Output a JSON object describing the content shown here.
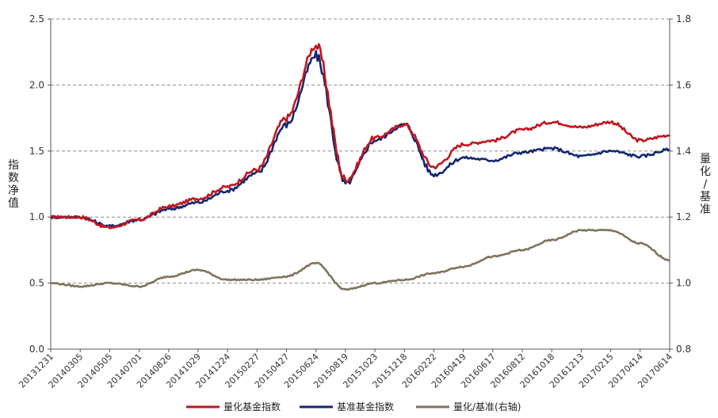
{
  "chart_data": {
    "type": "line",
    "title": "",
    "xlabel": "",
    "ylabel_left": "指数净值",
    "ylabel_right": "量化/基准",
    "ylim_left": [
      0.0,
      2.5
    ],
    "ylim_right": [
      0.8,
      1.8
    ],
    "yticks_left": [
      "0.0",
      "0.5",
      "1.0",
      "1.5",
      "2.0",
      "2.5"
    ],
    "yticks_right": [
      "0.8",
      "1.0",
      "1.2",
      "1.4",
      "1.6",
      "1.8"
    ],
    "grid": "horizontal-dashed",
    "legend_position": "bottom",
    "x_tick_labels": [
      "20131231",
      "20140305",
      "20140505",
      "20140701",
      "20140826",
      "20141029",
      "20141224",
      "20150227",
      "20150427",
      "20150624",
      "20150819",
      "20151023",
      "20151218",
      "20160222",
      "20160419",
      "20160617",
      "20160812",
      "20161018",
      "20161213",
      "20170215",
      "20170414",
      "20170614"
    ],
    "x": [
      "20131231",
      "20140305",
      "20140505",
      "20140701",
      "20140826",
      "20141029",
      "20141224",
      "20150227",
      "20150427",
      "20150624",
      "20150819",
      "20151023",
      "20151218",
      "20160222",
      "20160419",
      "20160617",
      "20160812",
      "20161018",
      "20161213",
      "20170215",
      "20170414",
      "20170614"
    ],
    "series": [
      {
        "name": "量化基金指数",
        "axis": "left",
        "color": "#c0161f",
        "values": [
          1.0,
          1.0,
          0.92,
          0.98,
          1.08,
          1.14,
          1.23,
          1.36,
          1.75,
          2.3,
          1.28,
          1.6,
          1.7,
          1.38,
          1.55,
          1.58,
          1.66,
          1.72,
          1.68,
          1.72,
          1.58,
          1.62
        ]
      },
      {
        "name": "基准基金指数",
        "axis": "left",
        "color": "#14286e",
        "values": [
          1.0,
          1.0,
          0.93,
          0.98,
          1.06,
          1.11,
          1.2,
          1.33,
          1.7,
          2.22,
          1.25,
          1.58,
          1.7,
          1.32,
          1.45,
          1.43,
          1.49,
          1.52,
          1.46,
          1.5,
          1.46,
          1.51
        ]
      },
      {
        "name": "量化/基准(右轴)",
        "axis": "right",
        "color": "#80725c",
        "values": [
          1.0,
          0.99,
          1.0,
          0.99,
          1.02,
          1.04,
          1.01,
          1.01,
          1.02,
          1.06,
          0.98,
          1.0,
          1.01,
          1.03,
          1.05,
          1.08,
          1.1,
          1.13,
          1.16,
          1.16,
          1.12,
          1.07
        ]
      }
    ]
  }
}
